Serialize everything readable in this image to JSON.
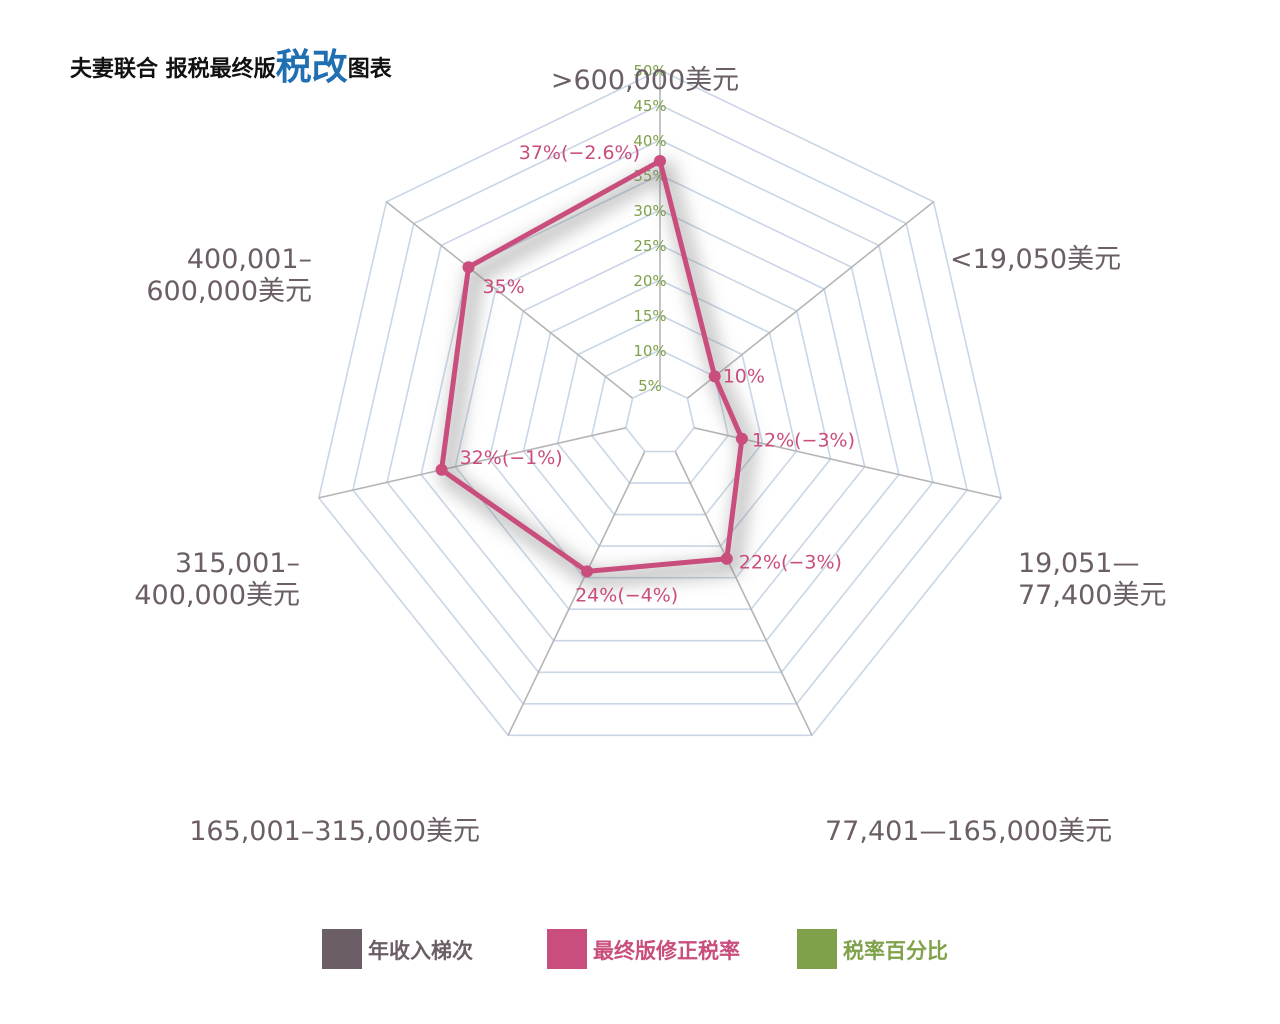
{
  "colors": {
    "income_bracket": "#6b5e67",
    "revised_rate": "#c94d7d",
    "rate_percent": "#7fa14a",
    "grid": "#c9d6e6",
    "axis": "#b5b5b5",
    "title_accent": "#1f6fb2"
  },
  "title": {
    "prefix": "夫妻联合 报税最终版",
    "emphasis": "税改",
    "suffix": "图表"
  },
  "legend": {
    "items": [
      {
        "key": "income_bracket",
        "label": "年收入梯次"
      },
      {
        "key": "revised_rate",
        "label": "最终版修正税率"
      },
      {
        "key": "rate_percent",
        "label": "税率百分比"
      }
    ]
  },
  "chart_data": {
    "type": "radar",
    "title": "夫妻联合 报税最终版税改图表",
    "axes": [
      ">600,000美元",
      "<19,050美元",
      "19,051—77,400美元",
      "77,401—165,000美元",
      "165,001–315,000美元",
      "315,001–400,000美元",
      "400,001–600,000美元"
    ],
    "axis_label_lines": [
      [
        ">600,000美元"
      ],
      [
        "<19,050美元"
      ],
      [
        "19,051—",
        "77,400美元"
      ],
      [
        "77,401—165,000美元"
      ],
      [
        "165,001–315,000美元"
      ],
      [
        "315,001–",
        "400,000美元"
      ],
      [
        "400,001–",
        "600,000美元"
      ]
    ],
    "scale": {
      "min": 0,
      "max": 50,
      "ticks": [
        5,
        10,
        15,
        20,
        25,
        30,
        35,
        40,
        45,
        50
      ],
      "tick_labels": [
        "5%",
        "10%",
        "15%",
        "20%",
        "25%",
        "30%",
        "35%",
        "40%",
        "45%",
        "50%"
      ]
    },
    "series": [
      {
        "name": "最终版修正税率",
        "values": [
          37,
          10,
          12,
          22,
          24,
          32,
          35
        ],
        "labels": [
          "37%(−2.6%)",
          "10%",
          "12%(−3%)",
          "22%(−3%)",
          "24%(−4%)",
          "32%(−1%)",
          "35%"
        ]
      }
    ]
  }
}
